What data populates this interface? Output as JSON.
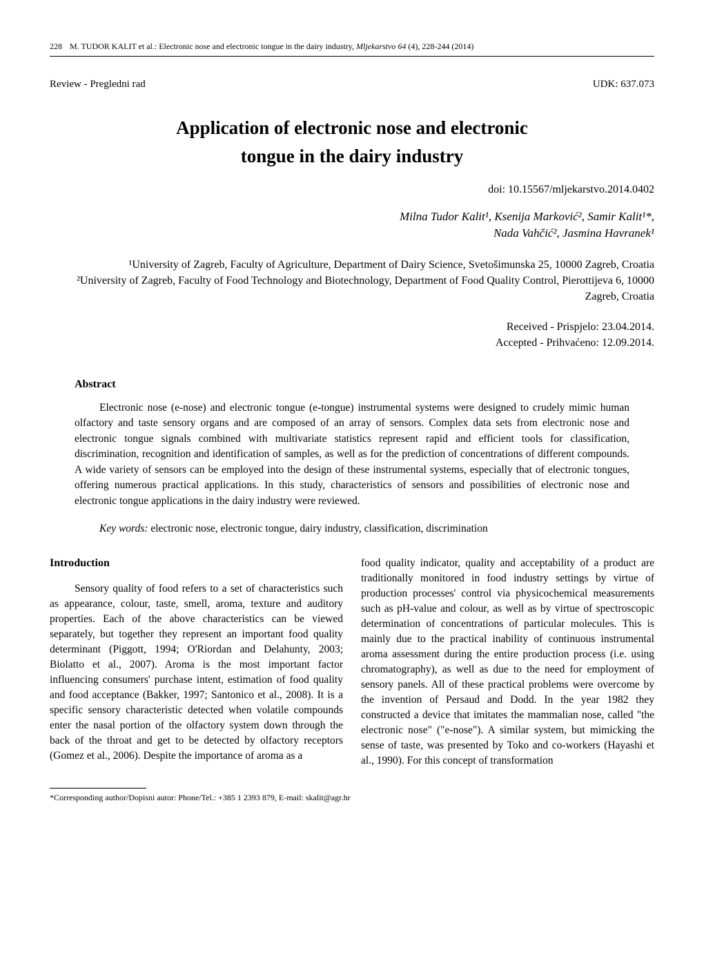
{
  "header": {
    "page_number": "228",
    "running_head_prefix": "M. TUDOR KALIT et al.: Electronic nose and electronic tongue in the dairy industry, ",
    "running_head_italic": "Mljekarstvo 64 ",
    "running_head_suffix": "(4), 228-244 (2014)"
  },
  "meta": {
    "article_type": "Review - Pregledni rad",
    "udk": "UDK: 637.073"
  },
  "title_line1": "Application of electronic nose and electronic",
  "title_line2": "tongue in the dairy industry",
  "doi": "doi: 10.15567/mljekarstvo.2014.0402",
  "authors_line1": "Milna Tudor Kalit¹, Ksenija Marković², Samir Kalit¹*,",
  "authors_line2": "Nada Vahčić², Jasmina Havranek¹",
  "affiliations": {
    "a1": "¹University of Zagreb, Faculty of Agriculture, Department of Dairy Science, Svetošimunska 25, 10000 Zagreb, Croatia",
    "a2": "²University of Zagreb, Faculty of Food Technology and Biotechnology, Department of Food Quality Control, Pierottijeva 6, 10000 Zagreb, Croatia"
  },
  "dates": {
    "received": "Received - Prispjelo: 23.04.2014.",
    "accepted": "Accepted - Prihvaćeno: 12.09.2014."
  },
  "abstract": {
    "heading": "Abstract",
    "body": "Electronic nose (e-nose) and electronic tongue (e-tongue) instrumental systems were designed to crudely mimic human olfactory and taste sensory organs and are composed of an array of sensors. Complex data sets from electronic nose and electronic tongue signals combined with multivariate statistics represent rapid and efficient tools for classification, discrimination, recognition and identification of samples, as well as for the prediction of concentrations of different compounds. A wide variety of sensors can be employed into the design of these instrumental systems, especially that of electronic tongues, offering numerous practical applications. In this study, characteristics of sensors and possibilities of electronic nose and electronic tongue applications in the dairy industry were reviewed."
  },
  "keywords": {
    "label": "Key words:",
    "values": " electronic nose, electronic tongue, dairy industry, classification, discrimination"
  },
  "introduction": {
    "heading": "Introduction",
    "left_column": "Sensory quality of food refers to a set of characteristics such as appearance, colour, taste, smell, aroma, texture and auditory properties. Each of the above characteristics can be viewed separately, but together they represent an important food quality determinant (Piggott, 1994; O'Riordan and Delahunty, 2003; Biolatto et al., 2007). Aroma is the most important factor influencing consumers' purchase intent, estimation of food quality and food acceptance (Bakker, 1997; Santonico et al., 2008). It is a specific sensory characteristic detected when volatile compounds enter the nasal portion of the olfactory system down through the back of the throat and get to be detected by olfactory receptors (Gomez et al., 2006). Despite the importance of aroma as a",
    "right_column": "food quality indicator, quality and acceptability of a product are traditionally monitored in food industry settings by virtue of production processes' control via physicochemical measurements such as pH-value and colour, as well as by virtue of spectroscopic determination of concentrations of particular molecules. This is mainly due to the practical inability of continuous instrumental aroma assessment during the entire production process (i.e. using chromatography), as well as due to the need for employment of sensory panels. All of these practical problems were overcome by the invention of Persaud and Dodd. In the year 1982 they constructed a device that imitates the mammalian nose, called \"the electronic nose\" (\"e-nose\"). A similar system, but mimicking the sense of taste, was presented by Toko and co-workers (Hayashi et al., 1990). For this concept of transformation"
  },
  "footnote": "*Corresponding author/Dopisni autor: Phone/Tel.: +385 1 2393 879, E-mail: skalit@agr.hr"
}
